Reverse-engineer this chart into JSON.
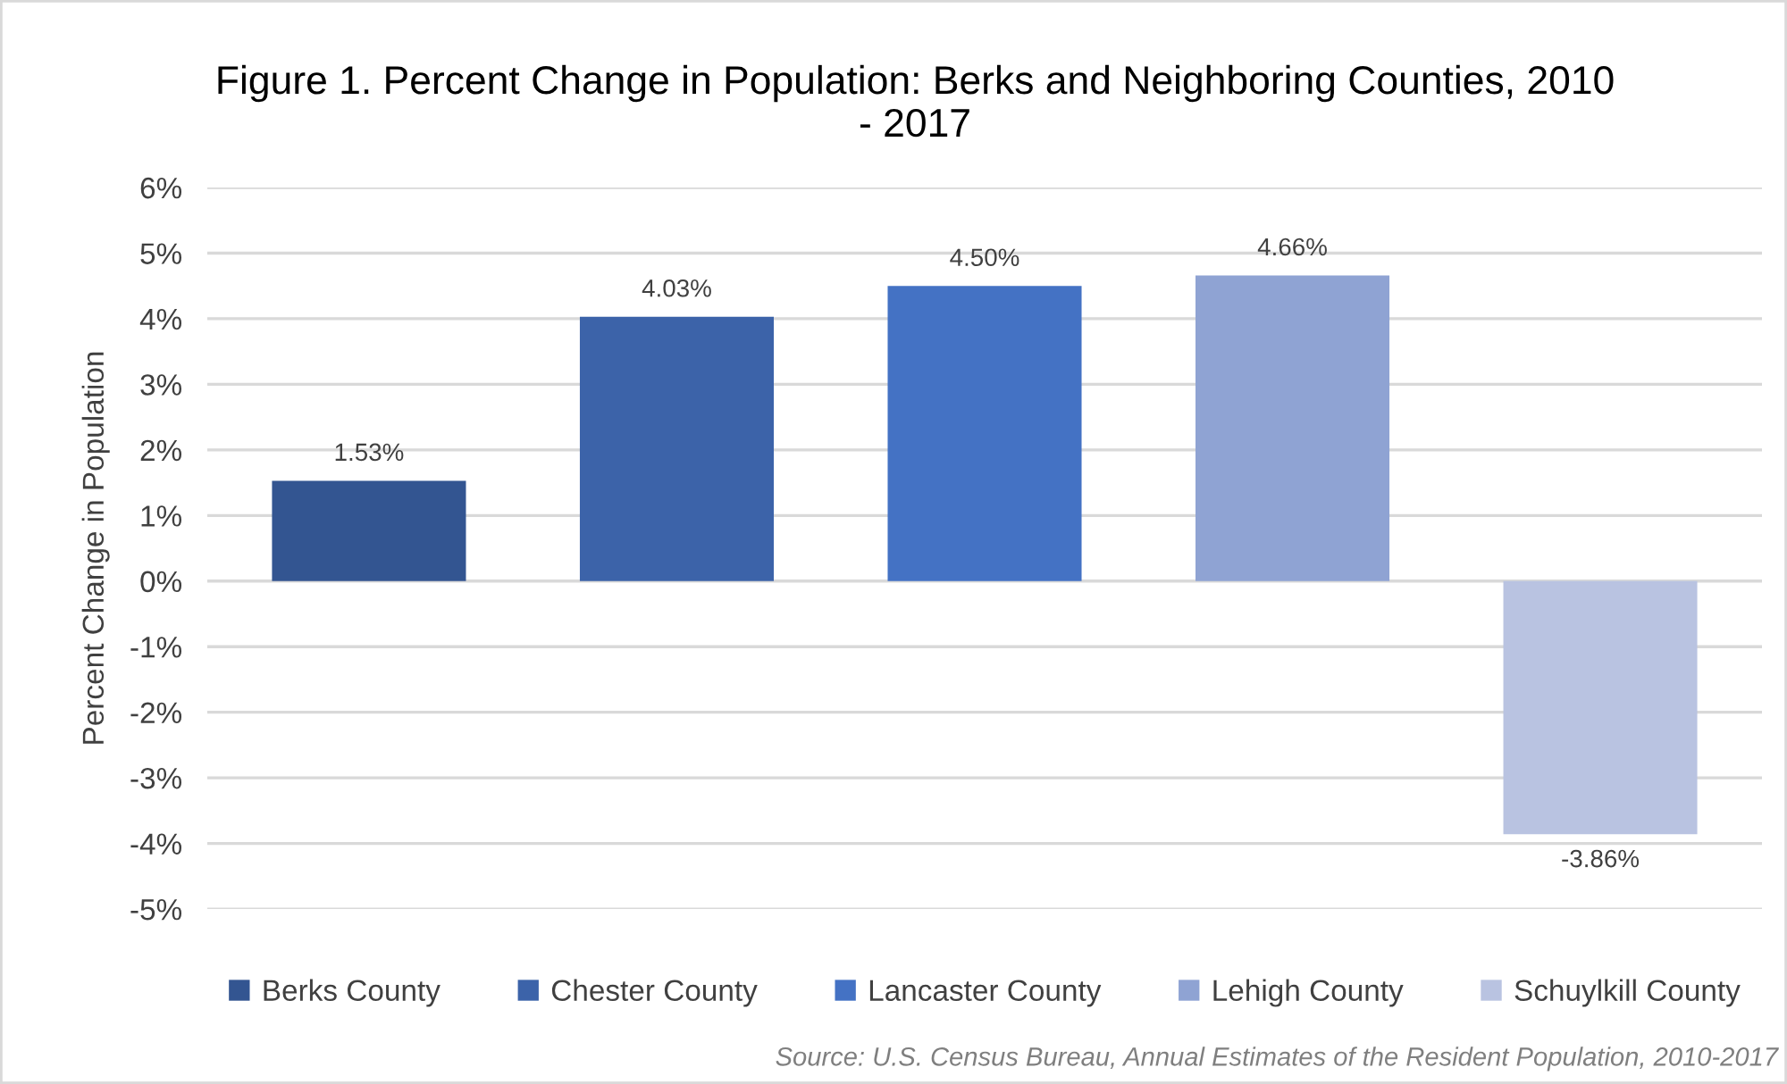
{
  "chart_data": {
    "type": "bar",
    "title": "Figure 1. Percent Change in Population: Berks and Neighboring Counties, 2010 - 2017",
    "ylabel": "Percent Change in Population",
    "categories": [
      null
    ],
    "series": [
      {
        "name": "Berks County",
        "color": "#335591",
        "values": [
          1.53
        ],
        "value_labels": [
          "1.53%"
        ]
      },
      {
        "name": "Chester County",
        "color": "#3c63a9",
        "values": [
          4.03
        ],
        "value_labels": [
          "4.03%"
        ]
      },
      {
        "name": "Lancaster County",
        "color": "#4472c4",
        "values": [
          4.5
        ],
        "value_labels": [
          "4.50%"
        ]
      },
      {
        "name": "Lehigh County",
        "color": "#8fa3d3",
        "values": [
          4.66
        ],
        "value_labels": [
          "4.66%"
        ]
      },
      {
        "name": "Schuylkill County",
        "color": "#b9c3e1",
        "values": [
          -3.86
        ],
        "value_labels": [
          "-3.86%"
        ]
      }
    ],
    "ylim": [
      -5,
      6
    ],
    "yticks": [
      {
        "value": 6,
        "label": "6%"
      },
      {
        "value": 5,
        "label": "5%"
      },
      {
        "value": 4,
        "label": "4%"
      },
      {
        "value": 3,
        "label": "3%"
      },
      {
        "value": 2,
        "label": "2%"
      },
      {
        "value": 1,
        "label": "1%"
      },
      {
        "value": 0,
        "label": "0%"
      },
      {
        "value": -1,
        "label": "-1%"
      },
      {
        "value": -2,
        "label": "-2%"
      },
      {
        "value": -3,
        "label": "-3%"
      },
      {
        "value": -4,
        "label": "-4%"
      },
      {
        "value": -5,
        "label": "-5%"
      }
    ],
    "grid": "y",
    "legend": "bottom",
    "tick_labels": "y",
    "annotations": [
      "Source: U.S. Census Bureau, Annual Estimates of the Resident Population, 2010-2017"
    ]
  }
}
